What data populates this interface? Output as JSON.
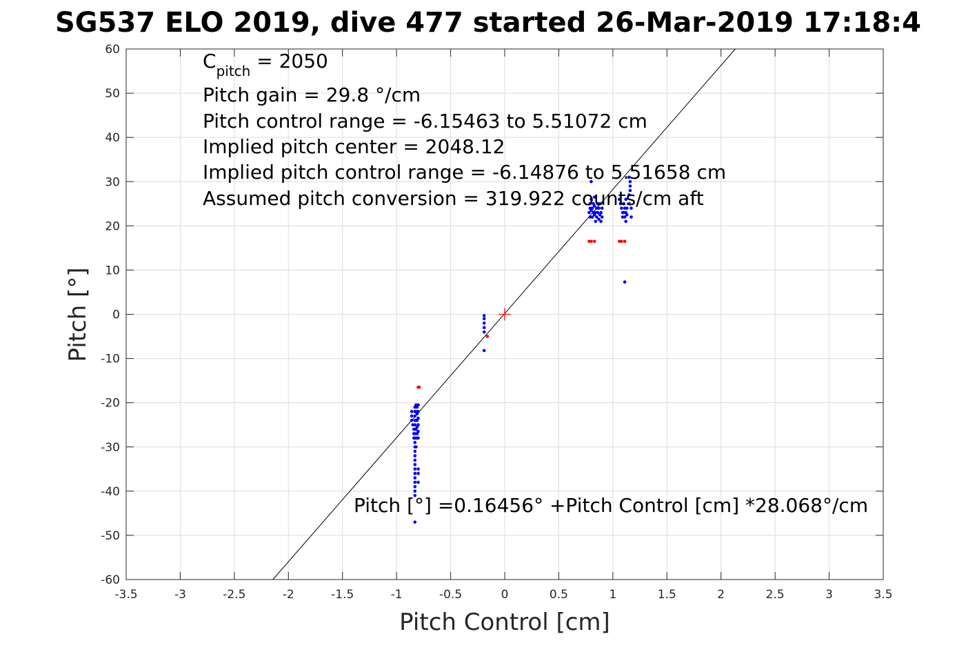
{
  "chart_data": {
    "type": "scatter",
    "title": "SG537 ELO 2019, dive 477 started 26-Mar-2019 17:18:4",
    "xlabel": "Pitch Control [cm]",
    "ylabel": "Pitch [°]",
    "xlim": [
      -3.5,
      3.5
    ],
    "ylim": [
      -60,
      60
    ],
    "grid": true,
    "xticks": [
      -3.5,
      -3,
      -2.5,
      -2,
      -1.5,
      -1,
      -0.5,
      0,
      0.5,
      1,
      1.5,
      2,
      2.5,
      3,
      3.5
    ],
    "xtick_labels": [
      "-3.5",
      "-3",
      "-2.5",
      "-2",
      "-1.5",
      "-1",
      "-0.5",
      "0",
      "0.5",
      "1",
      "1.5",
      "2",
      "2.5",
      "3",
      "3.5"
    ],
    "yticks": [
      60,
      50,
      40,
      30,
      20,
      10,
      0,
      -10,
      -20,
      -30,
      -40,
      -50,
      -60
    ],
    "ytick_labels": [
      "60",
      "50",
      "40",
      "30",
      "20",
      "10",
      "0",
      "-10",
      "-20",
      "-30",
      "-40",
      "-50",
      "-60"
    ],
    "annotations": {
      "cpitch_base": "C",
      "cpitch_sub": "pitch",
      "cpitch_rest": " = 2050",
      "pitch_gain": "Pitch gain = 29.8 °/cm",
      "control_range": "Pitch control range = -6.15463 to 5.51072 cm",
      "implied_center": "Implied pitch center = 2048.12",
      "implied_range": "Implied pitch control range = -6.14876 to 5.51658 cm",
      "conversion": "Assumed pitch conversion = 319.922 counts/cm aft",
      "fit_equation": "Pitch [°] =0.16456° +Pitch Control [cm] *28.068°/cm"
    },
    "fit_line": {
      "intercept": 0.16456,
      "slope": 28.068,
      "color": "#000000"
    },
    "center_marker": {
      "x": 0,
      "y": 0,
      "color": "#ff0000"
    },
    "series": [
      {
        "color": "#0000ff",
        "points": [
          [
            -0.86,
            -22
          ],
          [
            -0.86,
            -23
          ],
          [
            -0.86,
            -24
          ],
          [
            -0.85,
            -25
          ],
          [
            -0.84,
            -26
          ],
          [
            -0.84,
            -27
          ],
          [
            -0.84,
            -28
          ],
          [
            -0.83,
            -21
          ],
          [
            -0.83,
            -22
          ],
          [
            -0.83,
            -23
          ],
          [
            -0.83,
            -24
          ],
          [
            -0.83,
            -25
          ],
          [
            -0.83,
            -26
          ],
          [
            -0.83,
            -27
          ],
          [
            -0.83,
            -28
          ],
          [
            -0.83,
            -29
          ],
          [
            -0.83,
            -30
          ],
          [
            -0.83,
            -31
          ],
          [
            -0.83,
            -32
          ],
          [
            -0.83,
            -33
          ],
          [
            -0.83,
            -34
          ],
          [
            -0.83,
            -35
          ],
          [
            -0.83,
            -36
          ],
          [
            -0.83,
            -37
          ],
          [
            -0.83,
            -38
          ],
          [
            -0.83,
            -39
          ],
          [
            -0.83,
            -40
          ],
          [
            -0.83,
            -41
          ],
          [
            -0.83,
            -47
          ],
          [
            -0.82,
            -20.5
          ],
          [
            -0.82,
            -22
          ],
          [
            -0.82,
            -24
          ],
          [
            -0.82,
            -26
          ],
          [
            -0.82,
            -28
          ],
          [
            -0.82,
            -30
          ],
          [
            -0.81,
            -21
          ],
          [
            -0.81,
            -22.5
          ],
          [
            -0.81,
            -24
          ],
          [
            -0.81,
            -25.5
          ],
          [
            -0.81,
            -27
          ],
          [
            -0.81,
            -28
          ],
          [
            -0.8,
            -20.5
          ],
          [
            -0.8,
            -22
          ],
          [
            -0.8,
            -23.5
          ],
          [
            -0.8,
            -25
          ],
          [
            -0.8,
            -26.5
          ],
          [
            -0.8,
            -28
          ],
          [
            -0.8,
            -35
          ],
          [
            -0.8,
            -36
          ],
          [
            -0.8,
            -38
          ],
          [
            -0.19,
            -0.3
          ],
          [
            -0.19,
            -1
          ],
          [
            -0.19,
            -2
          ],
          [
            -0.19,
            -3
          ],
          [
            -0.19,
            -4
          ],
          [
            -0.19,
            -8.2
          ],
          [
            0.78,
            23
          ],
          [
            0.79,
            22
          ],
          [
            0.79,
            24
          ],
          [
            0.79,
            25
          ],
          [
            0.8,
            23.5
          ],
          [
            0.8,
            26
          ],
          [
            0.81,
            22
          ],
          [
            0.81,
            24
          ],
          [
            0.82,
            25
          ],
          [
            0.82,
            23
          ],
          [
            0.83,
            22.5
          ],
          [
            0.83,
            24.5
          ],
          [
            0.83,
            26.5
          ],
          [
            0.84,
            21
          ],
          [
            0.84,
            23
          ],
          [
            0.85,
            24
          ],
          [
            0.85,
            22
          ],
          [
            0.86,
            25
          ],
          [
            0.86,
            23
          ],
          [
            0.87,
            21.5
          ],
          [
            0.87,
            24
          ],
          [
            0.88,
            22.5
          ],
          [
            0.88,
            25
          ],
          [
            0.89,
            23
          ],
          [
            0.89,
            21
          ],
          [
            0.9,
            22
          ],
          [
            0.9,
            24
          ],
          [
            1.06,
            26
          ],
          [
            1.07,
            25
          ],
          [
            1.08,
            24
          ],
          [
            1.09,
            23
          ],
          [
            1.09,
            22
          ],
          [
            1.1,
            25
          ],
          [
            1.1,
            23
          ],
          [
            1.11,
            24
          ],
          [
            1.11,
            22
          ],
          [
            1.12,
            23
          ],
          [
            1.12,
            26
          ],
          [
            1.12,
            21
          ],
          [
            1.13,
            22.5
          ],
          [
            1.13,
            24
          ],
          [
            1.11,
            7.3
          ],
          [
            1.15,
            25
          ],
          [
            1.15,
            27
          ],
          [
            1.16,
            28
          ],
          [
            1.16,
            29
          ],
          [
            1.16,
            30
          ],
          [
            1.17,
            22
          ],
          [
            1.17,
            24
          ],
          [
            1.15,
            31
          ],
          [
            0.8,
            30
          ]
        ]
      },
      {
        "color": "#ff0000",
        "points": [
          [
            -0.79,
            -16.5
          ],
          [
            -0.8,
            -16.5
          ],
          [
            -0.16,
            -5
          ],
          [
            0.78,
            16.5
          ],
          [
            0.8,
            16.5
          ],
          [
            0.83,
            16.5
          ],
          [
            1.06,
            16.5
          ],
          [
            1.08,
            16.5
          ],
          [
            1.11,
            16.5
          ]
        ]
      }
    ]
  }
}
